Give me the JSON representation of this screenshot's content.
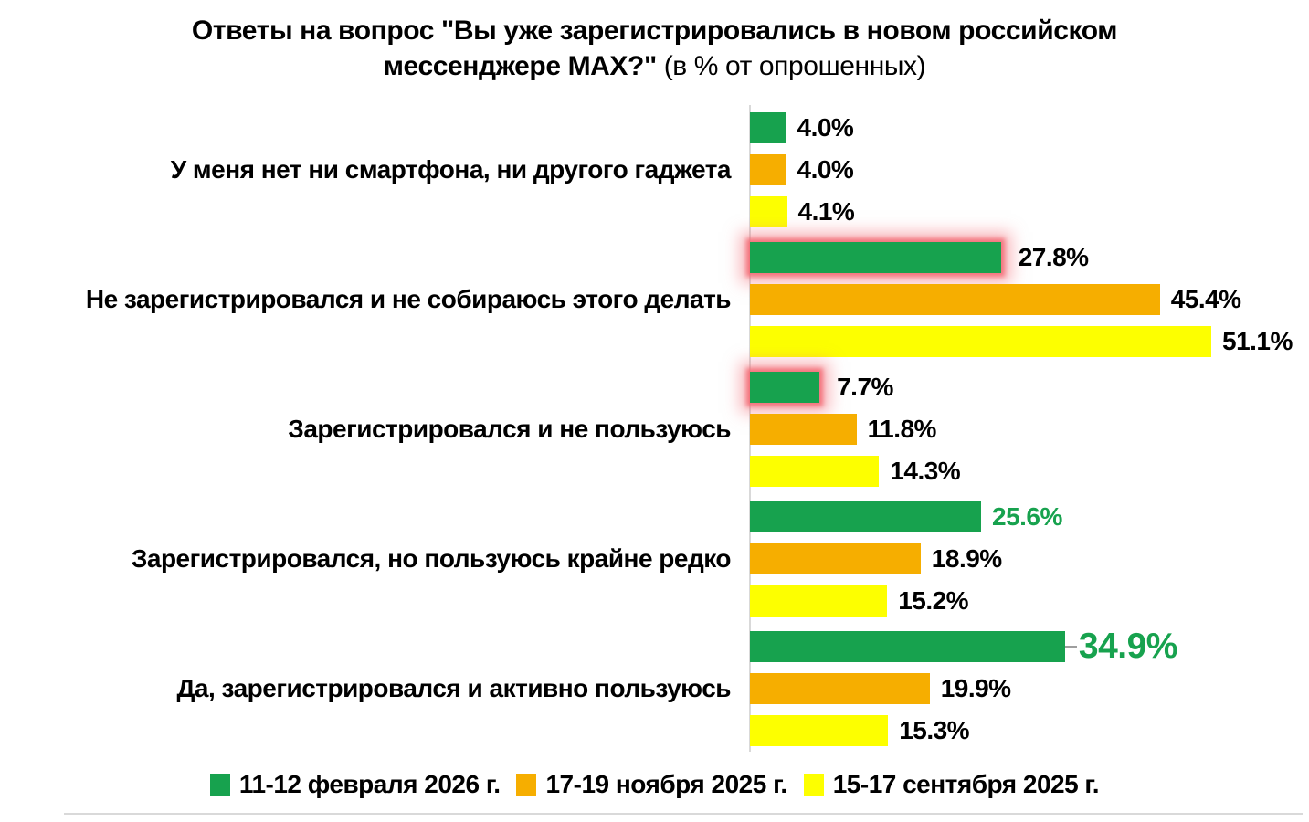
{
  "title": {
    "line1": "Ответы на вопрос \"Вы уже зарегистрировались в новом российском",
    "line2_bold": "мессенджере MAX?\"",
    "line2_rest": " (в % от опрошенных)"
  },
  "chart_data": {
    "type": "bar",
    "orientation": "horizontal",
    "title": "Ответы на вопрос \"Вы уже зарегистрировались в новом российском мессенджере MAX?\" (в % от опрошенных)",
    "xlim": [
      0,
      51.1
    ],
    "grid": false,
    "legend_position": "bottom",
    "categories": [
      "У меня нет ни смартфона, ни другого гаджета",
      "Не зарегистрировался и не собираюсь этого делать",
      "Зарегистрировался и не пользуюсь",
      "Зарегистрировался, но пользуюсь крайне редко",
      "Да, зарегистрировался и активно пользуюсь"
    ],
    "series": [
      {
        "key": "green",
        "name": "11-12 февраля 2026 г.",
        "color": "#17a24e",
        "values": [
          4.0,
          27.8,
          7.7,
          25.6,
          34.9
        ],
        "labels": [
          "4.0%",
          "27.8%",
          "7.7%",
          "25.6%",
          "34.9%"
        ]
      },
      {
        "key": "orange",
        "name": "17-19 ноября 2025 г.",
        "color": "#f6ae00",
        "values": [
          4.0,
          45.4,
          11.8,
          18.9,
          19.9
        ],
        "labels": [
          "4.0%",
          "45.4%",
          "11.8%",
          "18.9%",
          "19.9%"
        ]
      },
      {
        "key": "yellow",
        "name": "15-17 сентября 2025 г.",
        "color": "#fdff00",
        "values": [
          4.1,
          51.1,
          14.3,
          15.2,
          15.3
        ],
        "labels": [
          "4.1%",
          "51.1%",
          "14.3%",
          "15.2%",
          "15.3%"
        ]
      }
    ],
    "bar_styles": {
      "1-0": {
        "glow": true
      },
      "2-0": {
        "glow": true
      },
      "3-0": {
        "value_color": "green"
      },
      "4-0": {
        "value_color": "green",
        "value_size": "large",
        "leader": true
      }
    }
  },
  "colors": {
    "glow": "#f37079",
    "axis_line": "#d9d9d9",
    "value_green": "#17a24e",
    "leader_line": "#9e9e9e",
    "bottom_divider": "#d9d9d9"
  }
}
